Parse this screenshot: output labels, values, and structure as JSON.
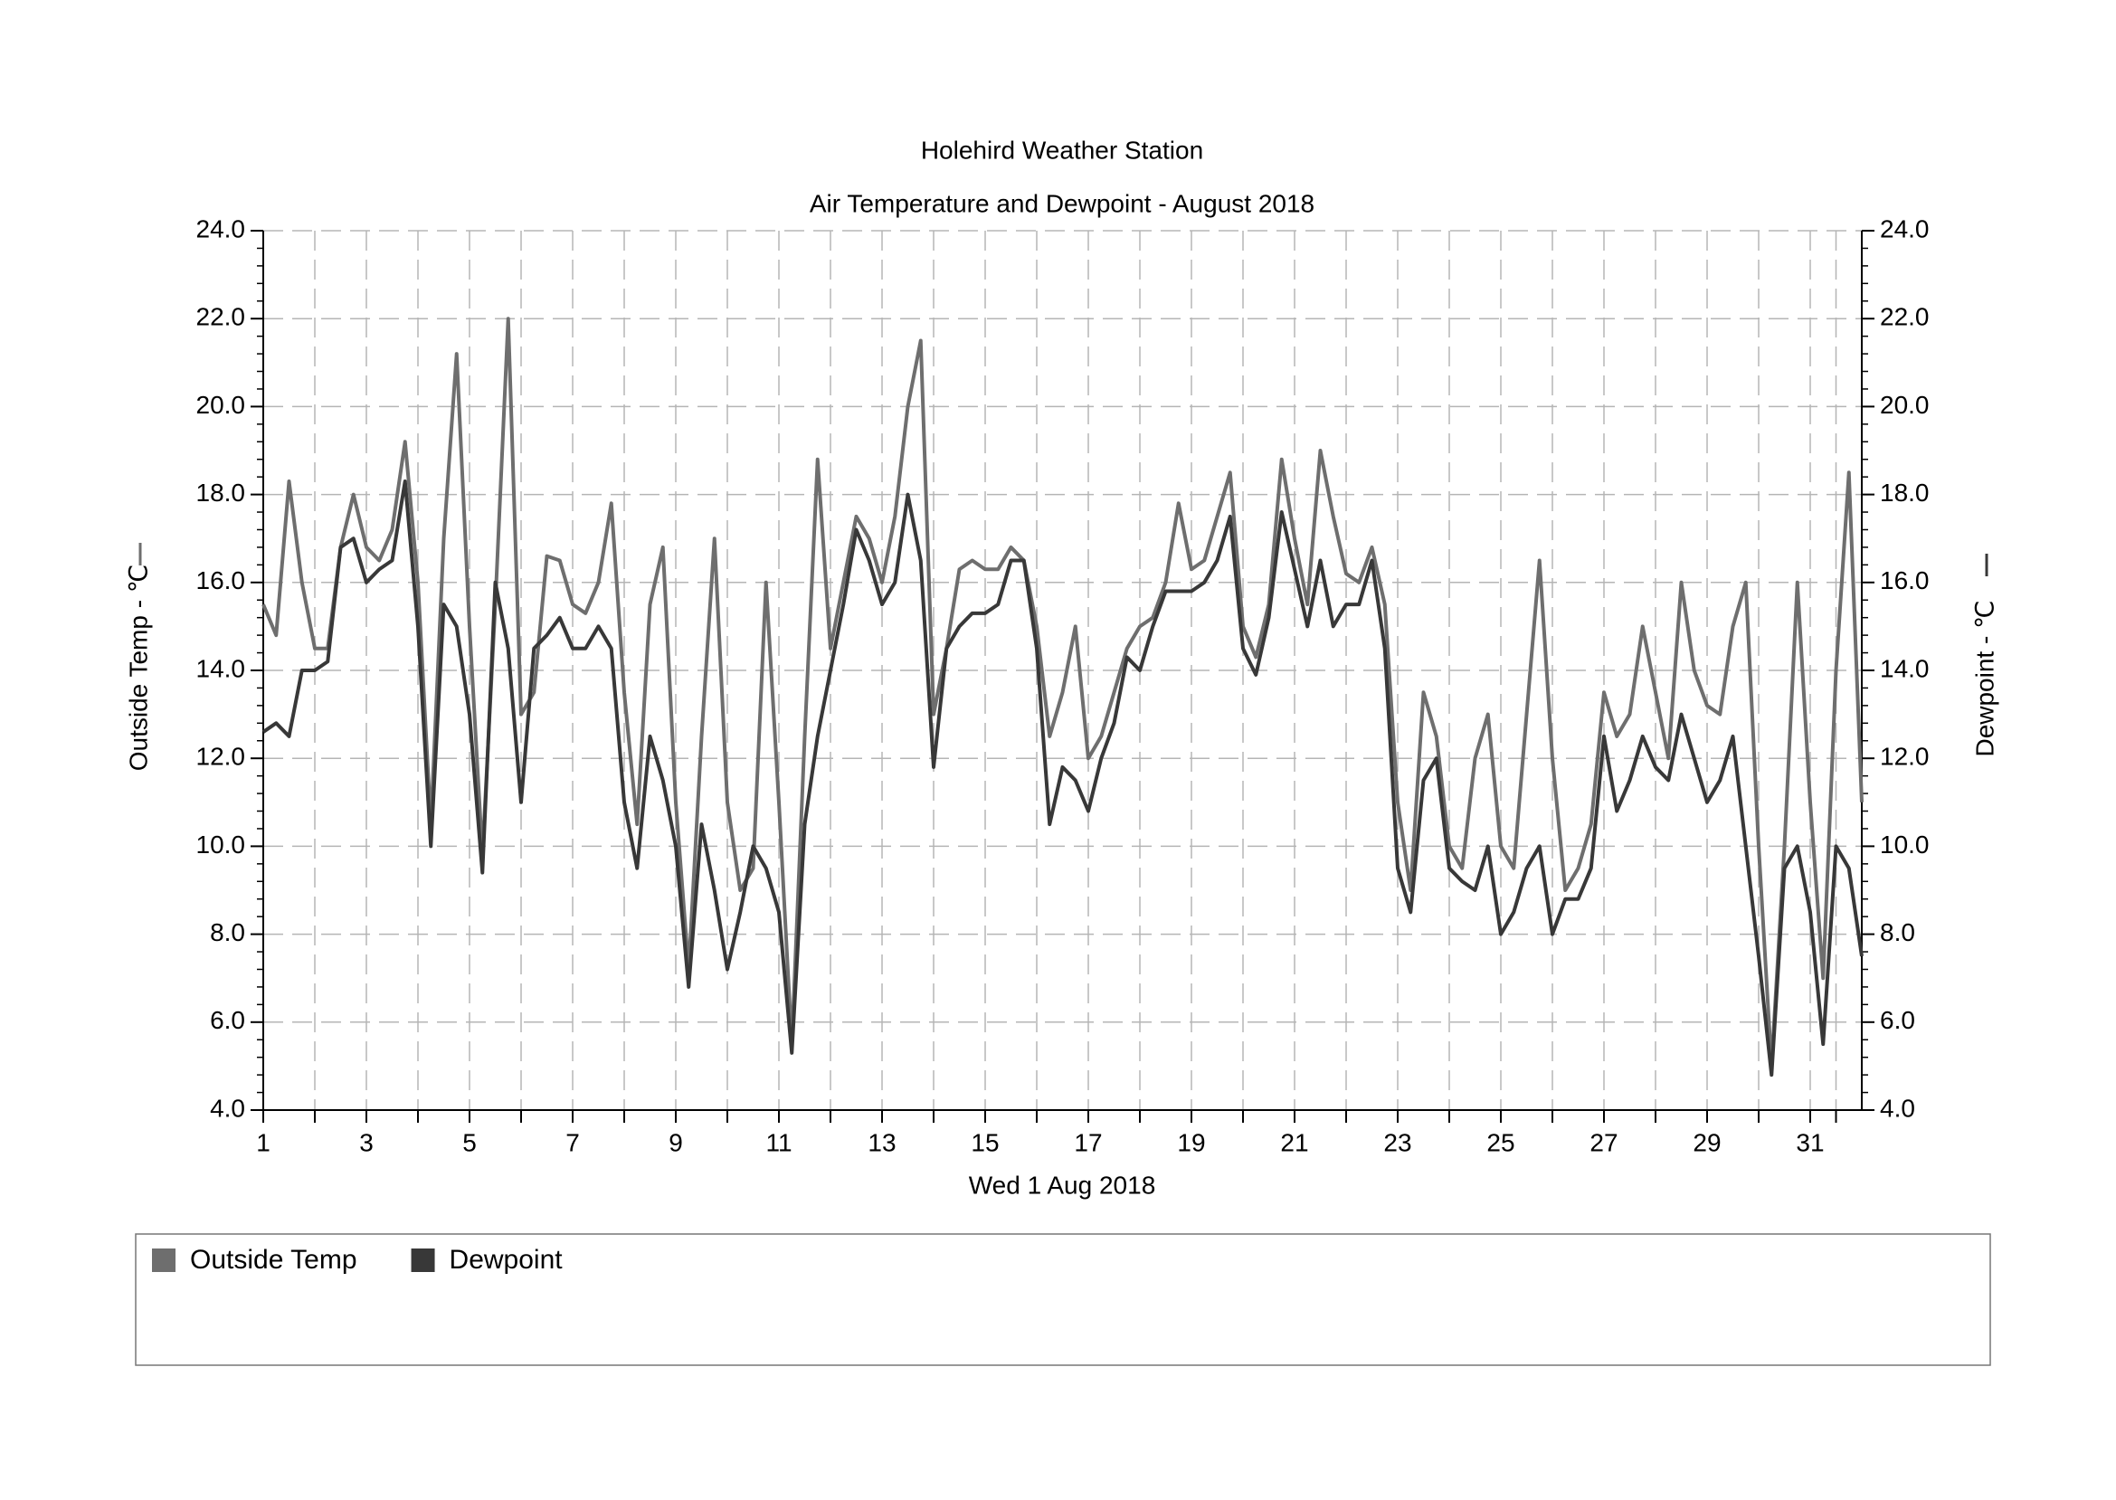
{
  "chart_data": {
    "type": "line",
    "title": "Holehird Weather Station",
    "subtitle": "Air Temperature and Dewpoint - August 2018",
    "x_label": "Wed 1 Aug 2018",
    "y_label": "Outside Temp - ℃",
    "y2_label": "Dewpoint - ℃",
    "xlim": [
      1,
      32
    ],
    "xticks": [
      1,
      3,
      5,
      7,
      9,
      11,
      13,
      15,
      17,
      19,
      21,
      23,
      25,
      27,
      29,
      31
    ],
    "ylim": [
      4,
      24
    ],
    "yticks": [
      {
        "value": 4,
        "label": "4.0"
      },
      {
        "value": 6,
        "label": "6.0"
      },
      {
        "value": 8,
        "label": "8.0"
      },
      {
        "value": 10,
        "label": "10.0"
      },
      {
        "value": 12,
        "label": "12.0"
      },
      {
        "value": 14,
        "label": "14.0"
      },
      {
        "value": 16,
        "label": "16.0"
      },
      {
        "value": 18,
        "label": "18.0"
      },
      {
        "value": 20,
        "label": "20.0"
      },
      {
        "value": 22,
        "label": "22.0"
      },
      {
        "value": 24,
        "label": "24.0"
      }
    ],
    "y2lim": [
      4,
      24
    ],
    "y2ticks": [
      {
        "value": 4,
        "label": "4.0"
      },
      {
        "value": 6,
        "label": "6.0"
      },
      {
        "value": 8,
        "label": "8.0"
      },
      {
        "value": 10,
        "label": "10.0"
      },
      {
        "value": 12,
        "label": "12.0"
      },
      {
        "value": 14,
        "label": "14.0"
      },
      {
        "value": 16,
        "label": "16.0"
      },
      {
        "value": 18,
        "label": "18.0"
      },
      {
        "value": 20,
        "label": "20.0"
      },
      {
        "value": 22,
        "label": "22.0"
      },
      {
        "value": 24,
        "label": "24.0"
      }
    ],
    "grid": true,
    "x": [
      1,
      1.25,
      1.5,
      1.75,
      2,
      2.25,
      2.5,
      2.75,
      3,
      3.25,
      3.5,
      3.75,
      4,
      4.25,
      4.5,
      4.75,
      5,
      5.25,
      5.5,
      5.75,
      6,
      6.25,
      6.5,
      6.75,
      7,
      7.25,
      7.5,
      7.75,
      8,
      8.25,
      8.5,
      8.75,
      9,
      9.25,
      9.5,
      9.75,
      10,
      10.25,
      10.5,
      10.75,
      11,
      11.25,
      11.5,
      11.75,
      12,
      12.25,
      12.5,
      12.75,
      13,
      13.25,
      13.5,
      13.75,
      14,
      14.25,
      14.5,
      14.75,
      15,
      15.25,
      15.5,
      15.75,
      16,
      16.25,
      16.5,
      16.75,
      17,
      17.25,
      17.5,
      17.75,
      18,
      18.25,
      18.5,
      18.75,
      19,
      19.25,
      19.5,
      19.75,
      20,
      20.25,
      20.5,
      20.75,
      21,
      21.25,
      21.5,
      21.75,
      22,
      22.25,
      22.5,
      22.75,
      23,
      23.25,
      23.5,
      23.75,
      24,
      24.25,
      24.5,
      24.75,
      25,
      25.25,
      25.5,
      25.75,
      26,
      26.25,
      26.5,
      26.75,
      27,
      27.25,
      27.5,
      27.75,
      28,
      28.25,
      28.5,
      28.75,
      29,
      29.25,
      29.5,
      29.75,
      30,
      30.25,
      30.5,
      30.75,
      31,
      31.25,
      31.5,
      31.75,
      32
    ],
    "series": [
      {
        "name": "Outside Temp",
        "color": "#6e6e6e",
        "values": [
          15.5,
          14.8,
          18.3,
          16.0,
          14.5,
          14.5,
          16.8,
          18.0,
          16.8,
          16.5,
          17.2,
          19.2,
          16.0,
          10.5,
          17.0,
          21.2,
          15.0,
          9.8,
          15.5,
          22.0,
          13.0,
          13.5,
          16.6,
          16.5,
          15.5,
          15.3,
          16.0,
          17.8,
          13.5,
          10.5,
          15.5,
          16.8,
          11.0,
          7.2,
          12.5,
          17.0,
          11.0,
          9.0,
          9.5,
          16.0,
          11.0,
          5.5,
          12.5,
          18.8,
          14.5,
          16.0,
          17.5,
          17.0,
          16.0,
          17.5,
          20.0,
          21.5,
          13.0,
          14.5,
          16.3,
          16.5,
          16.3,
          16.3,
          16.8,
          16.5,
          15.0,
          12.5,
          13.5,
          15.0,
          12.0,
          12.5,
          13.5,
          14.5,
          15.0,
          15.2,
          16.0,
          17.8,
          16.3,
          16.5,
          17.5,
          18.5,
          15.0,
          14.3,
          15.5,
          18.8,
          17.0,
          15.5,
          19.0,
          17.5,
          16.2,
          16.0,
          16.8,
          15.5,
          11.0,
          9.0,
          13.5,
          12.5,
          10.0,
          9.5,
          12.0,
          13.0,
          10.0,
          9.5,
          13.0,
          16.5,
          12.0,
          9.0,
          9.5,
          10.5,
          13.5,
          12.5,
          13.0,
          15.0,
          13.5,
          12.0,
          16.0,
          14.0,
          13.2,
          13.0,
          15.0,
          16.0,
          10.0,
          5.0,
          10.0,
          16.0,
          11.0,
          7.0,
          14.0,
          18.5,
          11.0
        ]
      },
      {
        "name": "Dewpoint",
        "color": "#383838",
        "axis": "y2",
        "values": [
          12.6,
          12.8,
          12.5,
          14.0,
          14.0,
          14.2,
          16.8,
          17.0,
          16.0,
          16.3,
          16.5,
          18.3,
          15.0,
          10.0,
          15.5,
          15.0,
          13.0,
          9.4,
          16.0,
          14.5,
          11.0,
          14.5,
          14.8,
          15.2,
          14.5,
          14.5,
          15.0,
          14.5,
          11.0,
          9.5,
          12.5,
          11.5,
          10.0,
          6.8,
          10.5,
          9.0,
          7.2,
          8.5,
          10.0,
          9.5,
          8.5,
          5.3,
          10.5,
          12.5,
          14.0,
          15.5,
          17.2,
          16.5,
          15.5,
          16.0,
          18.0,
          16.5,
          11.8,
          14.5,
          15.0,
          15.3,
          15.3,
          15.5,
          16.5,
          16.5,
          14.5,
          10.5,
          11.8,
          11.5,
          10.8,
          12.0,
          12.8,
          14.3,
          14.0,
          15.0,
          15.8,
          15.8,
          15.8,
          16.0,
          16.5,
          17.5,
          14.5,
          13.9,
          15.2,
          17.6,
          16.3,
          15.0,
          16.5,
          15.0,
          15.5,
          15.5,
          16.5,
          14.5,
          9.5,
          8.5,
          11.5,
          12.0,
          9.5,
          9.2,
          9.0,
          10.0,
          8.0,
          8.5,
          9.5,
          10.0,
          8.0,
          8.8,
          8.8,
          9.5,
          12.5,
          10.8,
          11.5,
          12.5,
          11.8,
          11.5,
          13.0,
          12.0,
          11.0,
          11.5,
          12.5,
          10.0,
          7.5,
          4.8,
          9.5,
          10.0,
          8.5,
          5.5,
          10.0,
          9.5,
          7.5
        ]
      }
    ]
  }
}
